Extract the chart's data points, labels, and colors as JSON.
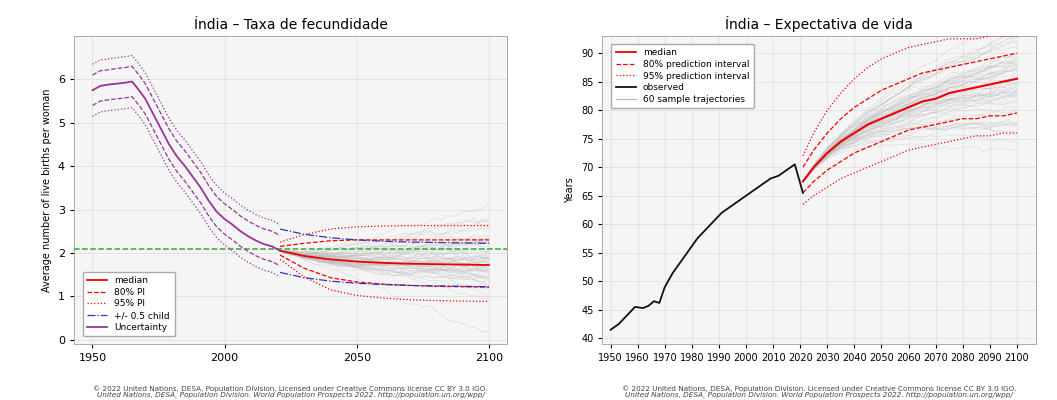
{
  "title_left": "Índia – Taxa de fecundidade",
  "title_right": "Índia – Expectativa de vida",
  "ylabel_left": "Average number of live births per woman",
  "ylabel_right": "Years",
  "xlim_left": [
    1943,
    2107
  ],
  "ylim_left": [
    -0.1,
    7.0
  ],
  "xlim_right": [
    1947,
    2107
  ],
  "ylim_right": [
    39,
    93
  ],
  "yticks_left": [
    0,
    1,
    2,
    3,
    4,
    5,
    6
  ],
  "yticks_right": [
    40,
    45,
    50,
    55,
    60,
    65,
    70,
    75,
    80,
    85,
    90
  ],
  "xticks_left": [
    1950,
    2000,
    2050,
    2100
  ],
  "xticks_right": [
    1950,
    1960,
    1970,
    1980,
    1990,
    2000,
    2010,
    2020,
    2030,
    2040,
    2050,
    2060,
    2070,
    2080,
    2090,
    2100
  ],
  "copyright_text_l1": "© 2022 United Nations, DESA, Population Division. Licensed under Creative Commons license CC BY 3.0 IGO.",
  "copyright_text_l2": "United Nations, DESA, Population Division. World Population Prospects 2022. http://population.un.org/wpp/",
  "bg_color": "#ffffff",
  "plot_bg_color": "#f5f5f5",
  "grid_color": "#dddddd",
  "purple_color": "#993399",
  "red_color": "#EE0000",
  "blue_color": "#3333BB",
  "green_color": "#33AA33",
  "gray_color": "#bbbbbb",
  "obs_color": "#111111",
  "fertility_obs_x": [
    1950,
    1953,
    1956,
    1959,
    1962,
    1965,
    1968,
    1970,
    1973,
    1976,
    1979,
    1982,
    1985,
    1988,
    1991,
    1994,
    1997,
    2000,
    2003,
    2006,
    2009,
    2012,
    2015,
    2018,
    2021
  ],
  "fertility_obs_y": [
    5.75,
    5.85,
    5.88,
    5.9,
    5.92,
    5.95,
    5.72,
    5.55,
    5.2,
    4.85,
    4.5,
    4.22,
    4.0,
    3.75,
    3.5,
    3.2,
    2.95,
    2.78,
    2.65,
    2.5,
    2.38,
    2.28,
    2.2,
    2.15,
    2.05
  ],
  "fertility_obs_upper_dashed_y": [
    6.1,
    6.2,
    6.22,
    6.25,
    6.27,
    6.3,
    6.07,
    5.9,
    5.55,
    5.2,
    4.85,
    4.57,
    4.35,
    4.1,
    3.85,
    3.55,
    3.3,
    3.13,
    3.0,
    2.85,
    2.73,
    2.63,
    2.55,
    2.5,
    2.4
  ],
  "fertility_obs_lower_dashed_y": [
    5.4,
    5.5,
    5.53,
    5.55,
    5.57,
    5.6,
    5.37,
    5.2,
    4.85,
    4.5,
    4.15,
    3.87,
    3.65,
    3.4,
    3.15,
    2.85,
    2.6,
    2.43,
    2.3,
    2.15,
    2.03,
    1.93,
    1.85,
    1.8,
    1.7
  ],
  "fertility_obs_upper_dotted_y": [
    6.35,
    6.45,
    6.47,
    6.5,
    6.52,
    6.55,
    6.32,
    6.15,
    5.8,
    5.45,
    5.1,
    4.82,
    4.6,
    4.35,
    4.1,
    3.8,
    3.55,
    3.38,
    3.25,
    3.1,
    2.98,
    2.88,
    2.8,
    2.75,
    2.65
  ],
  "fertility_obs_lower_dotted_y": [
    5.15,
    5.25,
    5.28,
    5.3,
    5.32,
    5.35,
    5.12,
    4.95,
    4.6,
    4.25,
    3.9,
    3.62,
    3.4,
    3.15,
    2.9,
    2.6,
    2.35,
    2.18,
    2.05,
    1.9,
    1.78,
    1.68,
    1.6,
    1.55,
    1.45
  ],
  "fertility_median_x": [
    2021,
    2030,
    2040,
    2050,
    2060,
    2070,
    2080,
    2090,
    2100
  ],
  "fertility_median_y": [
    2.05,
    1.93,
    1.85,
    1.8,
    1.77,
    1.75,
    1.74,
    1.73,
    1.72
  ],
  "fertility_80pi_upper_x": [
    2021,
    2030,
    2040,
    2050,
    2060,
    2070,
    2080,
    2090,
    2100
  ],
  "fertility_80pi_upper_y": [
    2.15,
    2.22,
    2.28,
    2.3,
    2.3,
    2.3,
    2.3,
    2.3,
    2.3
  ],
  "fertility_80pi_lower_x": [
    2021,
    2030,
    2040,
    2050,
    2060,
    2070,
    2080,
    2090,
    2100
  ],
  "fertility_80pi_lower_y": [
    1.95,
    1.65,
    1.43,
    1.33,
    1.28,
    1.25,
    1.23,
    1.22,
    1.21
  ],
  "fertility_95pi_upper_x": [
    2021,
    2030,
    2040,
    2050,
    2060,
    2070,
    2080,
    2090,
    2100
  ],
  "fertility_95pi_upper_y": [
    2.25,
    2.42,
    2.55,
    2.6,
    2.62,
    2.63,
    2.63,
    2.63,
    2.63
  ],
  "fertility_95pi_lower_x": [
    2021,
    2030,
    2040,
    2050,
    2060,
    2070,
    2080,
    2090,
    2100
  ],
  "fertility_95pi_lower_y": [
    1.85,
    1.45,
    1.15,
    1.02,
    0.96,
    0.92,
    0.9,
    0.89,
    0.88
  ],
  "fertility_hc_upper_x": [
    2021,
    2030,
    2040,
    2050,
    2060,
    2070,
    2080,
    2090,
    2100
  ],
  "fertility_hc_upper_y": [
    2.55,
    2.43,
    2.35,
    2.3,
    2.27,
    2.25,
    2.24,
    2.23,
    2.22
  ],
  "fertility_hc_lower_x": [
    2021,
    2030,
    2040,
    2050,
    2060,
    2070,
    2080,
    2090,
    2100
  ],
  "fertility_hc_lower_y": [
    1.55,
    1.43,
    1.35,
    1.3,
    1.27,
    1.25,
    1.24,
    1.23,
    1.22
  ],
  "replacement_level": 2.1,
  "le_obs_x": [
    1950,
    1953,
    1956,
    1959,
    1962,
    1964,
    1966,
    1968,
    1970,
    1973,
    1976,
    1979,
    1982,
    1985,
    1988,
    1991,
    1994,
    1997,
    2000,
    2003,
    2006,
    2009,
    2012,
    2015,
    2018,
    2021
  ],
  "le_obs_y": [
    41.5,
    42.5,
    44.0,
    45.5,
    45.3,
    45.7,
    46.5,
    46.2,
    49.0,
    51.5,
    53.5,
    55.5,
    57.5,
    59.0,
    60.5,
    62.0,
    63.0,
    64.0,
    65.0,
    66.0,
    67.0,
    68.0,
    68.5,
    69.5,
    70.5,
    65.5
  ],
  "le_median_x": [
    2021,
    2025,
    2030,
    2035,
    2040,
    2045,
    2050,
    2055,
    2060,
    2065,
    2070,
    2075,
    2080,
    2085,
    2090,
    2095,
    2100
  ],
  "le_median_y": [
    67.5,
    70.0,
    72.5,
    74.5,
    76.0,
    77.5,
    78.5,
    79.5,
    80.5,
    81.5,
    82.0,
    83.0,
    83.5,
    84.0,
    84.5,
    85.0,
    85.5
  ],
  "le_80pi_upper_x": [
    2021,
    2025,
    2030,
    2035,
    2040,
    2045,
    2050,
    2055,
    2060,
    2065,
    2070,
    2075,
    2080,
    2085,
    2090,
    2095,
    2100
  ],
  "le_80pi_upper_y": [
    70.0,
    73.0,
    76.0,
    78.5,
    80.5,
    82.0,
    83.5,
    84.5,
    85.5,
    86.5,
    87.0,
    87.5,
    88.0,
    88.5,
    89.0,
    89.5,
    90.0
  ],
  "le_80pi_lower_x": [
    2021,
    2025,
    2030,
    2035,
    2040,
    2045,
    2050,
    2055,
    2060,
    2065,
    2070,
    2075,
    2080,
    2085,
    2090,
    2095,
    2100
  ],
  "le_80pi_lower_y": [
    65.5,
    67.5,
    69.5,
    71.0,
    72.5,
    73.5,
    74.5,
    75.5,
    76.5,
    77.0,
    77.5,
    78.0,
    78.5,
    78.5,
    79.0,
    79.0,
    79.5
  ],
  "le_95pi_upper_x": [
    2021,
    2025,
    2030,
    2035,
    2040,
    2045,
    2050,
    2055,
    2060,
    2065,
    2070,
    2075,
    2080,
    2085,
    2090,
    2095,
    2100
  ],
  "le_95pi_upper_y": [
    72.0,
    76.0,
    80.0,
    83.0,
    85.5,
    87.5,
    89.0,
    90.0,
    91.0,
    91.5,
    92.0,
    92.5,
    92.5,
    92.5,
    93.0,
    93.0,
    93.0
  ],
  "le_95pi_lower_x": [
    2021,
    2025,
    2030,
    2035,
    2040,
    2045,
    2050,
    2055,
    2060,
    2065,
    2070,
    2075,
    2080,
    2085,
    2090,
    2095,
    2100
  ],
  "le_95pi_lower_y": [
    63.5,
    65.0,
    66.5,
    68.0,
    69.0,
    70.0,
    71.0,
    72.0,
    73.0,
    73.5,
    74.0,
    74.5,
    75.0,
    75.5,
    75.5,
    76.0,
    76.0
  ]
}
